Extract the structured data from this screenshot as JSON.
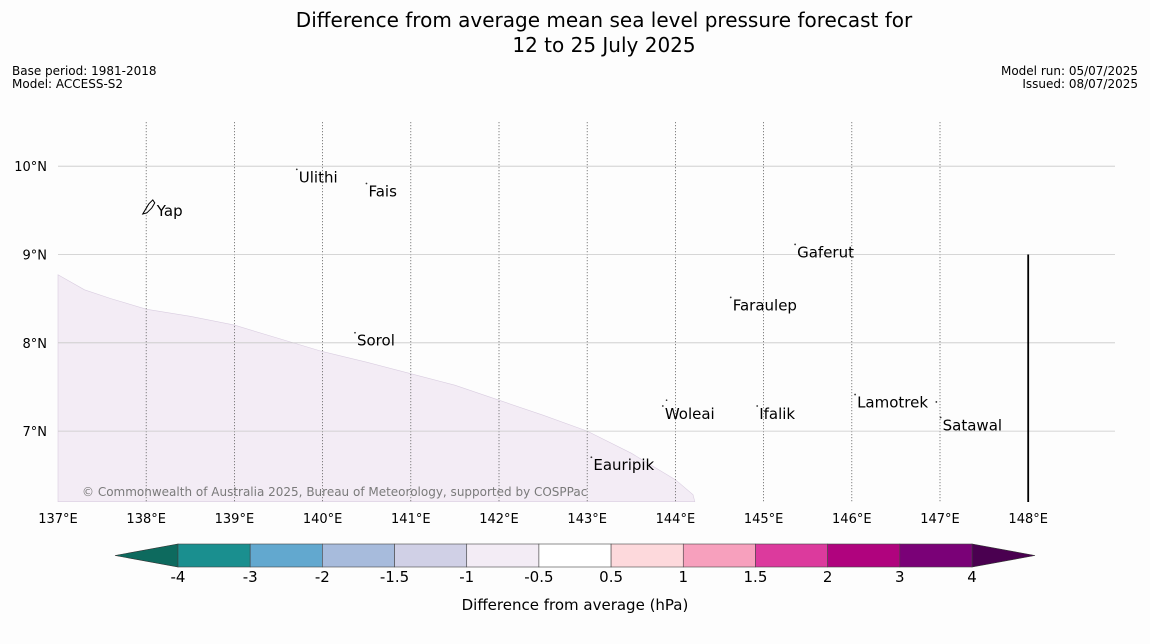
{
  "title_line1": "Difference from average mean sea level pressure forecast for",
  "title_line2": "12 to 25 July 2025",
  "meta_left": [
    "Base period: 1981-2018",
    "Model: ACCESS-S2"
  ],
  "meta_right": [
    "Model run: 05/07/2025",
    "Issued: 08/07/2025"
  ],
  "copyright": "© Commonwealth of Australia 2025, Bureau of Meteorology, supported by COSPPac",
  "map": {
    "lon_range": [
      137,
      149
    ],
    "lat_range": [
      6.2,
      10.5
    ],
    "lon_ticks": [
      {
        "value": 137,
        "label": "137°E"
      },
      {
        "value": 138,
        "label": "138°E"
      },
      {
        "value": 139,
        "label": "139°E"
      },
      {
        "value": 140,
        "label": "140°E"
      },
      {
        "value": 141,
        "label": "141°E"
      },
      {
        "value": 142,
        "label": "142°E"
      },
      {
        "value": 143,
        "label": "143°E"
      },
      {
        "value": 144,
        "label": "144°E"
      },
      {
        "value": 145,
        "label": "145°E"
      },
      {
        "value": 146,
        "label": "146°E"
      },
      {
        "value": 147,
        "label": "147°E"
      },
      {
        "value": 148,
        "label": "148°E"
      }
    ],
    "lat_ticks": [
      {
        "value": 10,
        "label": "10°N"
      },
      {
        "value": 9,
        "label": "9°N"
      },
      {
        "value": 8,
        "label": "8°N"
      },
      {
        "value": 7,
        "label": "7°N"
      }
    ],
    "places": [
      {
        "name": "Ulithi",
        "lon": 139.73,
        "lat": 9.93
      },
      {
        "name": "Fais",
        "lon": 140.52,
        "lat": 9.77
      },
      {
        "name": "Yap",
        "lon": 138.12,
        "lat": 9.55
      },
      {
        "name": "Gaferut",
        "lon": 145.38,
        "lat": 9.08
      },
      {
        "name": "Faraulep",
        "lon": 144.65,
        "lat": 8.48
      },
      {
        "name": "Sorol",
        "lon": 140.39,
        "lat": 8.08
      },
      {
        "name": "Lamotrek",
        "lon": 146.06,
        "lat": 7.38
      },
      {
        "name": "Woleai",
        "lon": 143.88,
        "lat": 7.25
      },
      {
        "name": "Ifalik",
        "lon": 144.95,
        "lat": 7.25
      },
      {
        "name": "Satawal",
        "lon": 147.03,
        "lat": 7.12
      },
      {
        "name": "Eauripik",
        "lon": 143.07,
        "lat": 6.67
      }
    ],
    "anomaly_region": {
      "class": "-1 to -0.5",
      "color": "#f3ecf5",
      "boundary": [
        [
          137,
          8.77
        ],
        [
          137.3,
          8.6
        ],
        [
          137.6,
          8.5
        ],
        [
          138,
          8.38
        ],
        [
          138.5,
          8.3
        ],
        [
          139,
          8.2
        ],
        [
          139.5,
          8.05
        ],
        [
          140,
          7.9
        ],
        [
          140.5,
          7.78
        ],
        [
          141,
          7.65
        ],
        [
          141.5,
          7.52
        ],
        [
          142,
          7.35
        ],
        [
          142.5,
          7.18
        ],
        [
          143,
          7.0
        ],
        [
          143.5,
          6.75
        ],
        [
          144,
          6.45
        ],
        [
          144.2,
          6.28
        ],
        [
          144.22,
          6.2
        ],
        [
          137,
          6.2
        ]
      ]
    },
    "boundary_line": {
      "lon": 148,
      "lat_from": 6.2,
      "lat_to": 9.0
    }
  },
  "colorbar": {
    "label": "Difference from average (hPa)",
    "tick_labels": [
      "-4",
      "-3",
      "-2",
      "-1.5",
      "-1",
      "-0.5",
      "0.5",
      "1",
      "1.5",
      "2",
      "3",
      "4"
    ],
    "colors": [
      "#1a8f8f",
      "#62a8cf",
      "#a7bbdc",
      "#d0d0e6",
      "#f3ecf5",
      "#ffffff",
      "#fdd9dc",
      "#f7a0bd",
      "#dc3a9d",
      "#b0037e",
      "#7a0177"
    ],
    "under_color": "#0d6a5e",
    "over_color": "#4a0050"
  }
}
